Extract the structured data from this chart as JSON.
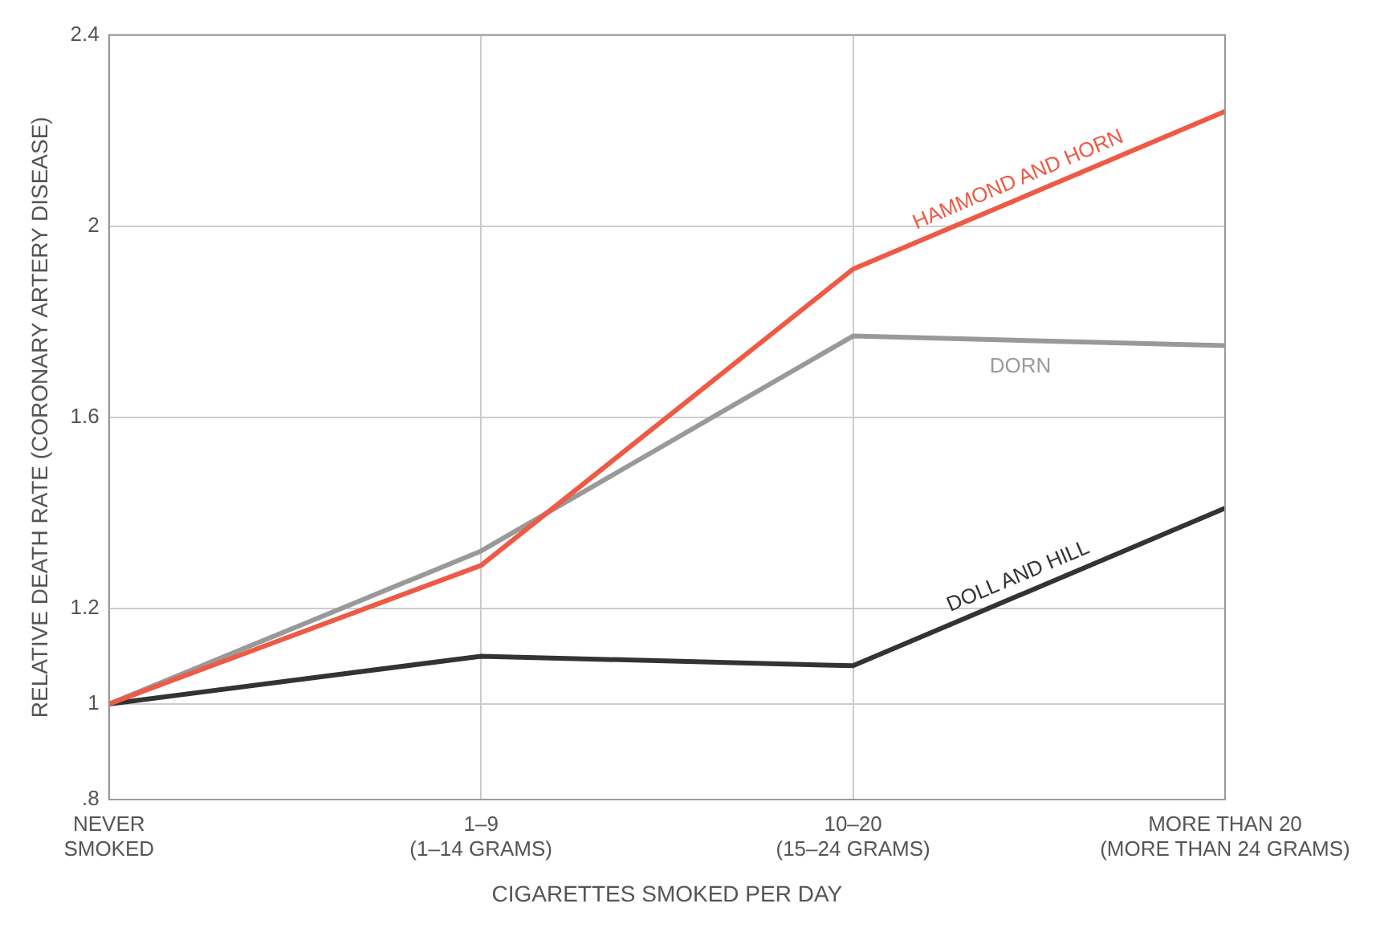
{
  "chart_data": {
    "type": "line",
    "xlabel": "CIGARETTES SMOKED PER DAY",
    "ylabel": "RELATIVE DEATH RATE (CORONARY ARTERY DISEASE)",
    "categories": [
      "NEVER\nSMOKED",
      "1–9\n(1–14 GRAMS)",
      "10–20\n(15–24 GRAMS)",
      "MORE THAN 20\n(MORE THAN 24 GRAMS)"
    ],
    "series": [
      {
        "name": "HAMMOND AND HORN",
        "color": "#ee5a45",
        "values": [
          1.0,
          1.29,
          1.91,
          2.24
        ]
      },
      {
        "name": "DORN",
        "color": "#999999",
        "values": [
          1.0,
          1.32,
          1.77,
          1.75
        ]
      },
      {
        "name": "DOLL AND HILL",
        "color": "#333333",
        "values": [
          1.0,
          1.1,
          1.08,
          1.41
        ]
      }
    ],
    "ylim": [
      0.8,
      2.4
    ],
    "yticks": [
      {
        "value": 0.8,
        "label": ".8"
      },
      1,
      1.2,
      1.6,
      2,
      2.4
    ],
    "grid": true,
    "marker": "none",
    "line_style": "solid",
    "legend": false
  }
}
